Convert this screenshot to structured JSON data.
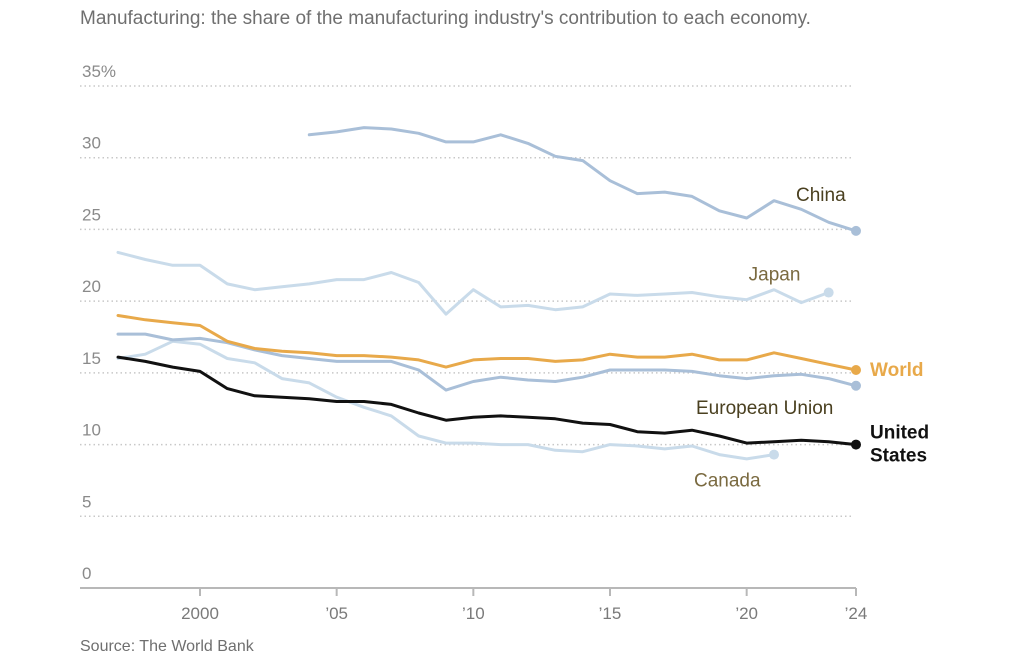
{
  "title": "Manufacturing: the share of the manufacturing industry's contribution to each economy.",
  "source": "Source: The World Bank",
  "chart_data": {
    "type": "line",
    "title": "Manufacturing: the share of the manufacturing industry's contribution to each economy.",
    "xlabel": "",
    "ylabel": "",
    "xlim": [
      1997,
      2024
    ],
    "ylim": [
      0,
      35
    ],
    "grid": true,
    "yticks": [
      0,
      5,
      10,
      15,
      20,
      25,
      30,
      35
    ],
    "ytick_labels": [
      "0",
      "5",
      "10",
      "15",
      "20",
      "25",
      "30",
      "35%"
    ],
    "xticks": [
      2000,
      2005,
      2010,
      2015,
      2020,
      2024
    ],
    "xtick_labels": [
      "2000",
      "’05",
      "’10",
      "’15",
      "’20",
      "’24"
    ],
    "series": [
      {
        "name": "China",
        "label": "China",
        "color": "#a9bfd8",
        "label_color": "#4a4020",
        "end_dot": true,
        "x": [
          2004,
          2005,
          2006,
          2007,
          2008,
          2009,
          2010,
          2011,
          2012,
          2013,
          2014,
          2015,
          2016,
          2017,
          2018,
          2019,
          2020,
          2021,
          2022,
          2023,
          2024
        ],
        "values": [
          31.6,
          31.8,
          32.1,
          32.0,
          31.7,
          31.1,
          31.1,
          31.6,
          31.0,
          30.1,
          29.8,
          28.4,
          27.5,
          27.6,
          27.3,
          26.3,
          25.8,
          27.0,
          26.4,
          25.5,
          24.9
        ]
      },
      {
        "name": "Japan",
        "label": "Japan",
        "color": "#c9dbea",
        "label_color": "#7a6a40",
        "end_dot": true,
        "x": [
          1997,
          1998,
          1999,
          2000,
          2001,
          2002,
          2003,
          2004,
          2005,
          2006,
          2007,
          2008,
          2009,
          2010,
          2011,
          2012,
          2013,
          2014,
          2015,
          2016,
          2017,
          2018,
          2019,
          2020,
          2021,
          2022,
          2023
        ],
        "values": [
          23.4,
          22.9,
          22.5,
          22.5,
          21.2,
          20.8,
          21.0,
          21.2,
          21.5,
          21.5,
          22.0,
          21.3,
          19.1,
          20.8,
          19.6,
          19.7,
          19.4,
          19.6,
          20.5,
          20.4,
          20.5,
          20.6,
          20.3,
          20.1,
          20.8,
          19.9,
          20.6
        ]
      },
      {
        "name": "World",
        "label": "World",
        "color": "#e8a94a",
        "label_color": "#e8a94a",
        "end_dot": true,
        "x": [
          1997,
          1998,
          1999,
          2000,
          2001,
          2002,
          2003,
          2004,
          2005,
          2006,
          2007,
          2008,
          2009,
          2010,
          2011,
          2012,
          2013,
          2014,
          2015,
          2016,
          2017,
          2018,
          2019,
          2020,
          2021,
          2022,
          2023,
          2024
        ],
        "values": [
          19.0,
          18.7,
          18.5,
          18.3,
          17.2,
          16.7,
          16.5,
          16.4,
          16.2,
          16.2,
          16.1,
          15.9,
          15.4,
          15.9,
          16.0,
          16.0,
          15.8,
          15.9,
          16.3,
          16.1,
          16.1,
          16.3,
          15.9,
          15.9,
          16.4,
          16.0,
          15.6,
          15.2
        ]
      },
      {
        "name": "European Union",
        "label": "European Union",
        "color": "#a9bfd8",
        "label_color": "#4a4020",
        "end_dot": true,
        "x": [
          1997,
          1998,
          1999,
          2000,
          2001,
          2002,
          2003,
          2004,
          2005,
          2006,
          2007,
          2008,
          2009,
          2010,
          2011,
          2012,
          2013,
          2014,
          2015,
          2016,
          2017,
          2018,
          2019,
          2020,
          2021,
          2022,
          2023,
          2024
        ],
        "values": [
          17.7,
          17.7,
          17.3,
          17.4,
          17.1,
          16.6,
          16.2,
          16.0,
          15.8,
          15.8,
          15.8,
          15.2,
          13.8,
          14.4,
          14.7,
          14.5,
          14.4,
          14.7,
          15.2,
          15.2,
          15.2,
          15.1,
          14.8,
          14.6,
          14.8,
          14.9,
          14.6,
          14.1
        ]
      },
      {
        "name": "United States",
        "label": "United States",
        "color": "#111111",
        "label_color": "#111111",
        "end_dot": true,
        "x": [
          1997,
          1998,
          1999,
          2000,
          2001,
          2002,
          2003,
          2004,
          2005,
          2006,
          2007,
          2008,
          2009,
          2010,
          2011,
          2012,
          2013,
          2014,
          2015,
          2016,
          2017,
          2018,
          2019,
          2020,
          2021,
          2022,
          2023,
          2024
        ],
        "values": [
          16.1,
          15.8,
          15.4,
          15.1,
          13.9,
          13.4,
          13.3,
          13.2,
          13.0,
          13.0,
          12.8,
          12.2,
          11.7,
          11.9,
          12.0,
          11.9,
          11.8,
          11.5,
          11.4,
          10.9,
          10.8,
          11.0,
          10.6,
          10.1,
          10.2,
          10.3,
          10.2,
          10.0
        ]
      },
      {
        "name": "Canada",
        "label": "Canada",
        "color": "#c9dbea",
        "label_color": "#7a6a40",
        "end_dot": true,
        "x": [
          1997,
          1998,
          1999,
          2000,
          2001,
          2002,
          2003,
          2004,
          2005,
          2006,
          2007,
          2008,
          2009,
          2010,
          2011,
          2012,
          2013,
          2014,
          2015,
          2016,
          2017,
          2018,
          2019,
          2020,
          2021
        ],
        "values": [
          16.0,
          16.3,
          17.2,
          17.0,
          16.0,
          15.7,
          14.6,
          14.3,
          13.3,
          12.6,
          12.0,
          10.6,
          10.1,
          10.1,
          10.0,
          10.0,
          9.6,
          9.5,
          10.0,
          9.9,
          9.7,
          9.9,
          9.3,
          9.0,
          9.3
        ]
      }
    ]
  }
}
